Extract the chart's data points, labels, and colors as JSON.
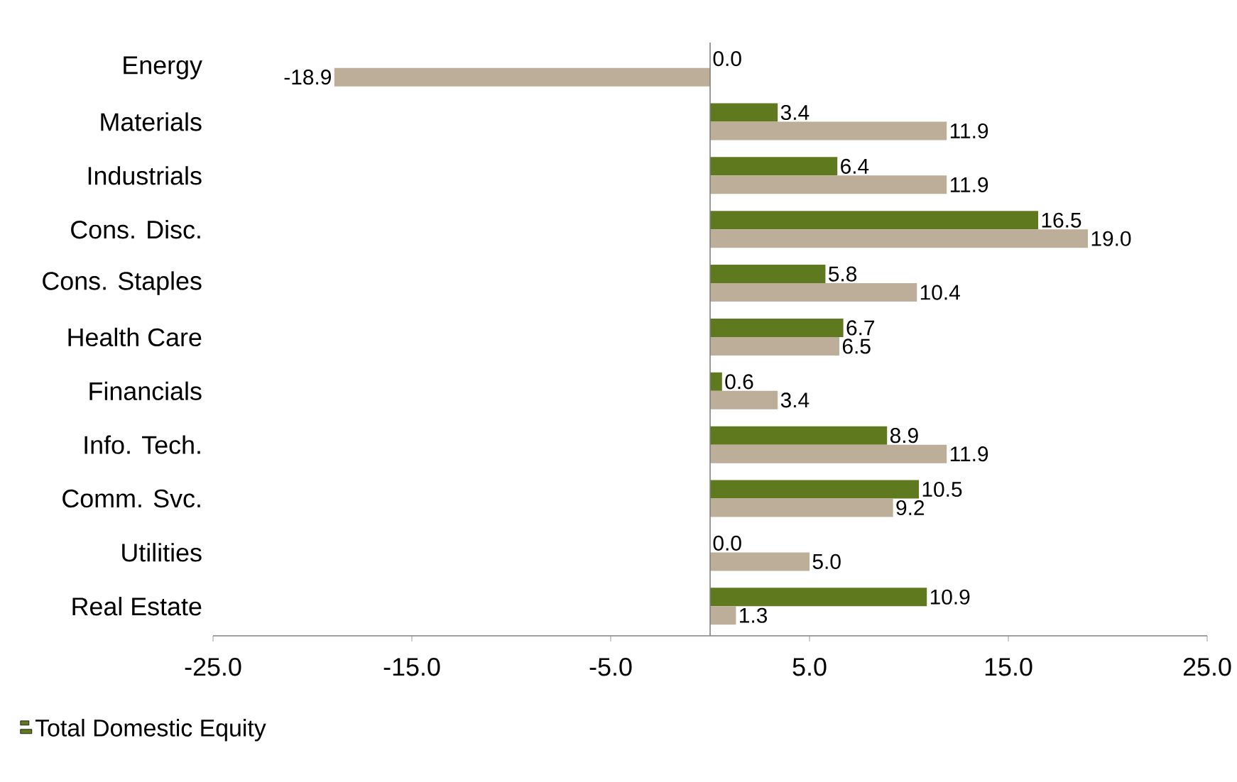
{
  "chart_data": {
    "type": "bar",
    "orientation": "horizontal",
    "categories": [
      "Energy",
      "Materials",
      "Industrials",
      "Cons. Disc.",
      "Cons. Staples",
      "Health Care",
      "Financials",
      "Info. Tech.",
      "Comm. Svc.",
      "Utilities",
      "Real Estate"
    ],
    "series": [
      {
        "name": "Total Domestic Equity",
        "color": "#5f7a1e",
        "values": [
          0.0,
          3.4,
          6.4,
          16.5,
          5.8,
          6.7,
          0.6,
          8.9,
          10.5,
          0.0,
          10.9
        ],
        "value_labels": [
          "0.0",
          "3.4",
          "6.4",
          "16.5",
          "5.8",
          "6.7",
          "0.6",
          "8.9",
          "10.5",
          "0.0",
          "10.9"
        ]
      },
      {
        "color": "#bcae98",
        "values": [
          -18.9,
          11.9,
          11.9,
          19.0,
          10.4,
          6.5,
          3.4,
          11.9,
          9.2,
          5.0,
          1.3
        ],
        "value_labels": [
          "-18.9",
          "11.9",
          "11.9",
          "19.0",
          "10.4",
          "6.5",
          "3.4",
          "11.9",
          "9.2",
          "5.0",
          "1.3"
        ]
      }
    ],
    "xlim": [
      -25,
      25
    ],
    "xticks": [
      {
        "value": -25,
        "label": "-25.0"
      },
      {
        "value": -15,
        "label": "-15.0"
      },
      {
        "value": -5,
        "label": "-5.0"
      },
      {
        "value": 5,
        "label": "5.0"
      },
      {
        "value": 15,
        "label": "15.0"
      },
      {
        "value": 25,
        "label": "25.0"
      }
    ],
    "grid": false,
    "legend": "bottom left"
  }
}
